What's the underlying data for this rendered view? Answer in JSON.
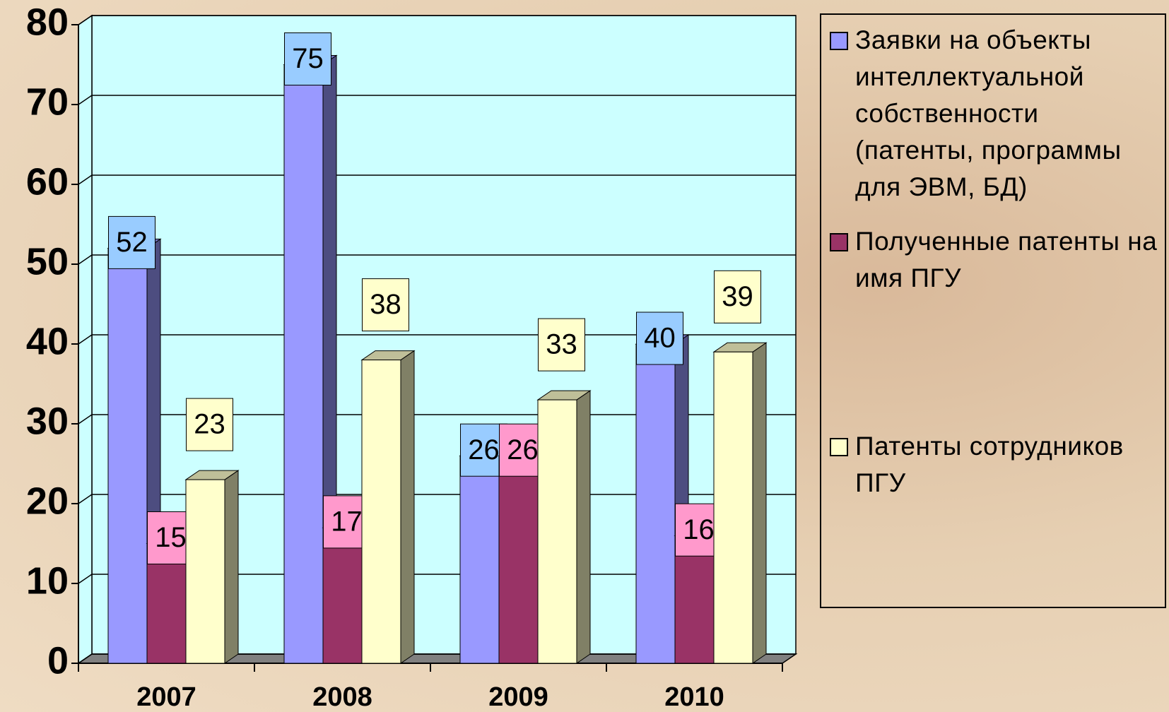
{
  "chart_data": {
    "type": "bar3d",
    "categories": [
      "2007",
      "2008",
      "2009",
      "2010"
    ],
    "series": [
      {
        "name": "Заявки на объекты интеллектуальной собственности (патенты, программы для ЭВМ, БД)",
        "color": "#9999ff",
        "label_color": "#99ccff",
        "values": [
          52,
          75,
          26,
          40
        ]
      },
      {
        "name": "Полученные патенты на имя ПГУ",
        "color": "#993366",
        "label_color": "#ff99cc",
        "values": [
          15,
          17,
          26,
          16
        ]
      },
      {
        "name": "Патенты сотрудников ПГУ",
        "color": "#ffffcc",
        "label_color": "#ffffcc",
        "values": [
          23,
          38,
          33,
          39
        ]
      }
    ],
    "ylim": [
      0,
      80
    ],
    "yticks": [
      0,
      10,
      20,
      30,
      40,
      50,
      60,
      70,
      80
    ],
    "grid": true,
    "legend": "right"
  }
}
